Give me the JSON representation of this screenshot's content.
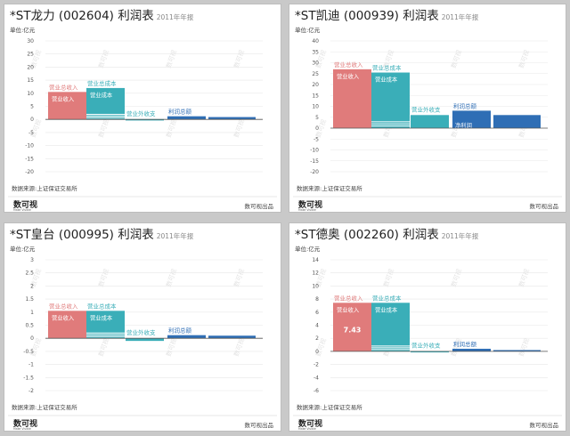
{
  "footer": {
    "source": "数据来源:上证保证交易所",
    "brand": "数可视出品",
    "logo_text": "数可视",
    "logo_sub": "Make Visible"
  },
  "watermark": "数可视",
  "colors": {
    "revenue": "#e07b7b",
    "cost": "#3aaeb8",
    "nonop": "#3aaeb8",
    "profit": "#2f6eb5",
    "grid": "#e8e8e8",
    "axis": "#555555"
  },
  "labels": {
    "total_revenue": "营业总收入",
    "revenue": "营业收入",
    "total_cost": "营业总成本",
    "cost": "营业成本",
    "nonop": "营业外收支",
    "total_profit": "利润总额",
    "net_profit": "净利润"
  },
  "panels": [
    {
      "title": "*ST龙力 (002604) 利润表",
      "year": "2011年年报",
      "unit": "单位:亿元"
    },
    {
      "title": "*ST凯迪 (000939) 利润表",
      "year": "2011年年报",
      "unit": "单位:亿元"
    },
    {
      "title": "*ST皇台 (000995) 利润表",
      "year": "2011年年报",
      "unit": "单位:亿元"
    },
    {
      "title": "*ST德奥 (002260) 利润表",
      "year": "2011年年报",
      "unit": "单位:亿元"
    }
  ],
  "chart_data": [
    {
      "type": "bar",
      "title": "*ST龙力 (002604) 利润表",
      "ylabel": "单位:亿元",
      "ylim": [
        -20,
        30
      ],
      "yticks": [
        30,
        25,
        20,
        15,
        10,
        5,
        0,
        -5,
        -10,
        -15,
        -20
      ],
      "categories": [
        "营业总收入",
        "营业总成本",
        "营业外收支",
        "利润总额"
      ],
      "series": [
        {
          "name": "营业总收入",
          "values": [
            10.5,
            null,
            null,
            null
          ],
          "sub": [
            {
              "name": "营业收入",
              "value": 10.5
            }
          ]
        },
        {
          "name": "营业总成本",
          "values": [
            null,
            12.0,
            null,
            null
          ],
          "sub": [
            {
              "name": "营业成本",
              "value": 7.7
            }
          ]
        },
        {
          "name": "营业外收支",
          "values": [
            null,
            null,
            0.1,
            null
          ]
        },
        {
          "name": "利润总额",
          "values": [
            null,
            null,
            null,
            1.2
          ]
        },
        {
          "name": "净利润",
          "values": [
            null,
            null,
            null,
            0.9
          ]
        }
      ]
    },
    {
      "type": "bar",
      "title": "*ST凯迪 (000939) 利润表",
      "ylabel": "单位:亿元",
      "ylim": [
        -20,
        40
      ],
      "yticks": [
        40,
        35,
        30,
        25,
        20,
        15,
        10,
        5,
        0,
        -5,
        -10,
        -15,
        -20
      ],
      "categories": [
        "营业总收入",
        "营业总成本",
        "营业外收支",
        "利润总额"
      ],
      "series": [
        {
          "name": "营业总收入",
          "values": [
            27,
            null,
            null,
            null
          ],
          "sub": [
            {
              "name": "营业收入",
              "value": 27
            }
          ]
        },
        {
          "name": "营业总成本",
          "values": [
            null,
            25.5,
            null,
            null
          ],
          "sub": [
            {
              "name": "营业成本",
              "value": 19
            }
          ]
        },
        {
          "name": "营业外收支",
          "values": [
            null,
            null,
            6,
            null
          ]
        },
        {
          "name": "利润总额",
          "values": [
            null,
            null,
            null,
            8
          ]
        },
        {
          "name": "净利润",
          "values": [
            null,
            null,
            null,
            6
          ]
        }
      ]
    },
    {
      "type": "bar",
      "title": "*ST皇台 (000995) 利润表",
      "ylabel": "单位:亿元",
      "ylim": [
        -2,
        3
      ],
      "yticks": [
        3.0,
        2.5,
        2.0,
        1.5,
        1.0,
        0.5,
        0.0,
        -0.5,
        -1.0,
        -1.5,
        -2.0
      ],
      "categories": [
        "营业总收入",
        "营业总成本",
        "营业外收支",
        "利润总额"
      ],
      "series": [
        {
          "name": "营业总收入",
          "values": [
            1.05,
            null,
            null,
            null
          ],
          "sub": [
            {
              "name": "营业收入",
              "value": 1.05
            }
          ]
        },
        {
          "name": "营业总成本",
          "values": [
            null,
            1.05,
            null,
            null
          ],
          "sub": [
            {
              "name": "营业成本",
              "value": 0.6
            }
          ]
        },
        {
          "name": "营业外收支",
          "values": [
            null,
            null,
            -0.1,
            null
          ]
        },
        {
          "name": "利润总额",
          "values": [
            null,
            null,
            null,
            0.12
          ]
        },
        {
          "name": "净利润",
          "values": [
            null,
            null,
            null,
            0.1
          ]
        }
      ]
    },
    {
      "type": "bar",
      "title": "*ST德奥 (002260) 利润表",
      "ylabel": "单位:亿元",
      "ylim": [
        -6,
        14
      ],
      "yticks": [
        14,
        12,
        10,
        8,
        6,
        4,
        2,
        0,
        -2,
        -4,
        -6
      ],
      "categories": [
        "营业总收入",
        "营业总成本",
        "营业外收支",
        "利润总额"
      ],
      "series": [
        {
          "name": "营业总收入",
          "values": [
            7.43,
            null,
            null,
            null
          ],
          "sub": [
            {
              "name": "营业收入",
              "value": 7.43
            }
          ],
          "data_label": "7.43"
        },
        {
          "name": "营业总成本",
          "values": [
            null,
            7.43,
            null,
            null
          ],
          "sub": [
            {
              "name": "营业成本",
              "value": 5.6
            }
          ]
        },
        {
          "name": "营业外收支",
          "values": [
            null,
            null,
            0.05,
            null
          ]
        },
        {
          "name": "利润总额",
          "values": [
            null,
            null,
            null,
            0.4
          ]
        },
        {
          "name": "净利润",
          "values": [
            null,
            null,
            null,
            0.2
          ]
        }
      ]
    }
  ]
}
